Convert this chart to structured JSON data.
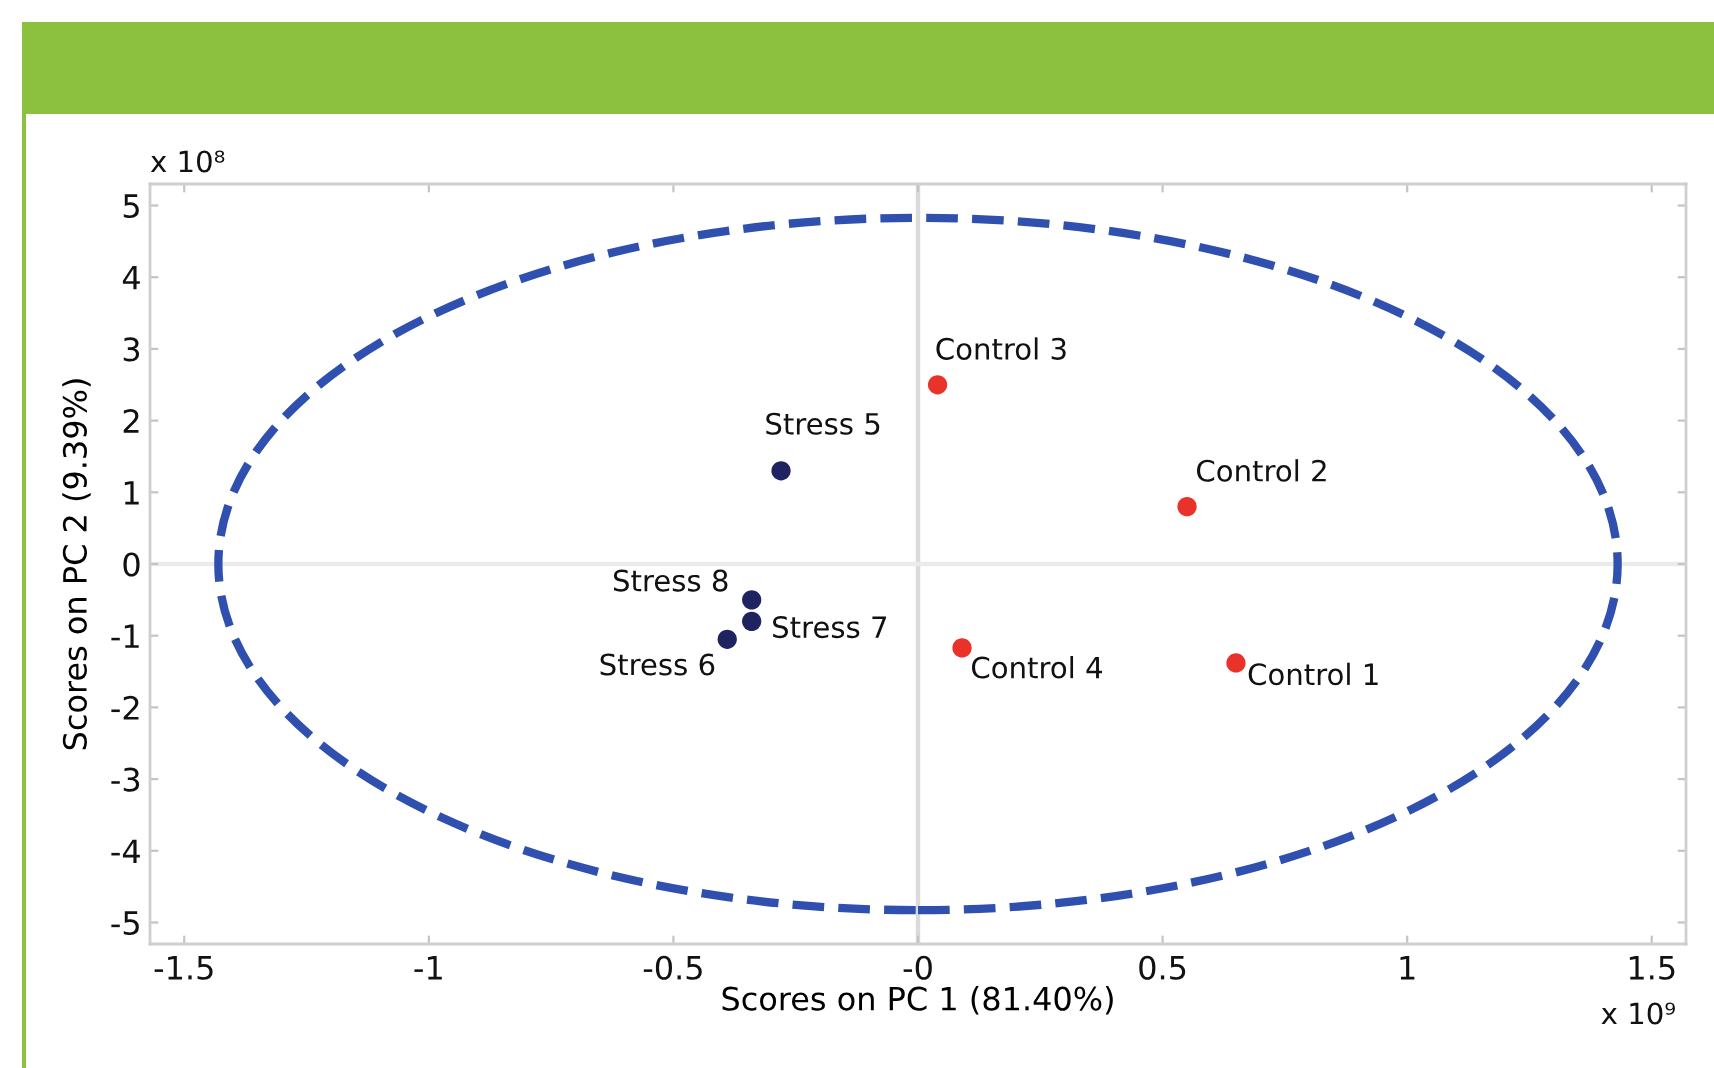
{
  "chart_data": {
    "type": "scatter",
    "xlabel": "Scores on PC 1 (81.40%)",
    "ylabel": "Scores on PC 2 (9.39%)",
    "xlim": [
      -1.57,
      1.57
    ],
    "ylim": [
      -5.3,
      5.3
    ],
    "xticks": [
      -1.5,
      -1,
      -0.5,
      {
        "value": 0,
        "label": "-0"
      },
      0.5,
      1,
      1.5
    ],
    "yticks": [
      -5,
      -4,
      -3,
      -2,
      -1,
      0,
      1,
      2,
      3,
      4,
      5
    ],
    "marker": "circle",
    "series": [
      {
        "color": "#e8322a",
        "x": [
          0.65,
          0.55,
          0.04,
          0.09
        ],
        "values": [
          -1.38,
          0.8,
          2.5,
          -1.17
        ]
      },
      {
        "color": "#1f2460",
        "x": [
          -0.28,
          -0.39,
          -0.34,
          -0.34
        ],
        "values": [
          1.3,
          -1.05,
          -0.8,
          -0.5
        ]
      }
    ],
    "ref_lines": [
      {
        "axis": "x",
        "value": 0,
        "color": "#dadada"
      },
      {
        "axis": "y",
        "value": 0,
        "color": "#ebebeb"
      }
    ],
    "annotations": [
      {
        "text": "Control 1",
        "x": 0.65,
        "y": -1.38
      },
      {
        "text": "Control 2",
        "x": 0.55,
        "y": 0.8
      },
      {
        "text": "Control 3",
        "x": 0.04,
        "y": 2.5
      },
      {
        "text": "Control 4",
        "x": 0.09,
        "y": -1.17
      },
      {
        "text": "Stress 5",
        "x": -0.28,
        "y": 1.3
      },
      {
        "text": "Stress 6",
        "x": -0.39,
        "y": -1.05
      },
      {
        "text": "Stress 7",
        "x": -0.34,
        "y": -0.8
      },
      {
        "text": "Stress 8",
        "x": -0.34,
        "y": -0.5
      },
      "x 10⁸",
      "x 10⁹"
    ]
  }
}
